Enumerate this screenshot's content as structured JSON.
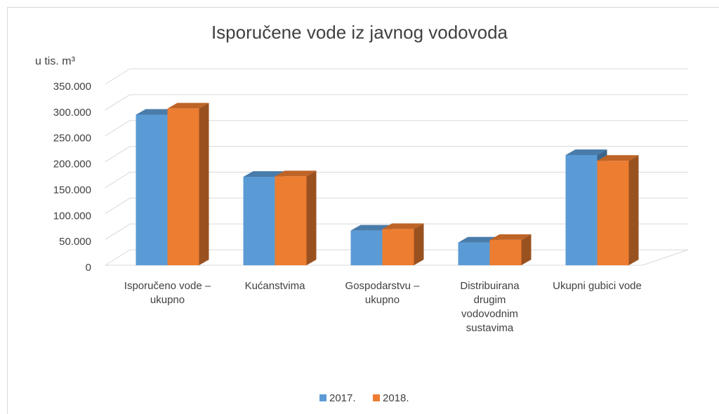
{
  "chart_data": {
    "type": "bar3d",
    "title": "Isporučene vode iz javnog vodovoda",
    "y_axis_label": "u tis. m³",
    "categories": [
      "Isporučeno vode – ukupno",
      "Kućanstvima",
      "Gospodarstvu – ukupno",
      "Distribuirana drugim vodovodnim sustavima",
      "Ukupni gubici vode"
    ],
    "series": [
      {
        "name": "2017.",
        "color": "#5b9bd5",
        "values": [
          291000,
          171000,
          67000,
          44000,
          213000
        ]
      },
      {
        "name": "2018.",
        "color": "#ed7d31",
        "values": [
          303000,
          172000,
          70000,
          49000,
          202000
        ]
      }
    ],
    "ylim": [
      0,
      350000
    ],
    "yticks": [
      0,
      {
        "value": 50000,
        "label": "50.000"
      },
      {
        "value": 100000,
        "label": "100.000"
      },
      {
        "value": 150000,
        "label": "150.000"
      },
      {
        "value": 200000,
        "label": "200.000"
      },
      {
        "value": 250000,
        "label": "250.000"
      },
      {
        "value": 300000,
        "label": "300.000"
      },
      {
        "value": 350000,
        "label": "350.000"
      }
    ],
    "grid": true,
    "legend": "bottom"
  }
}
